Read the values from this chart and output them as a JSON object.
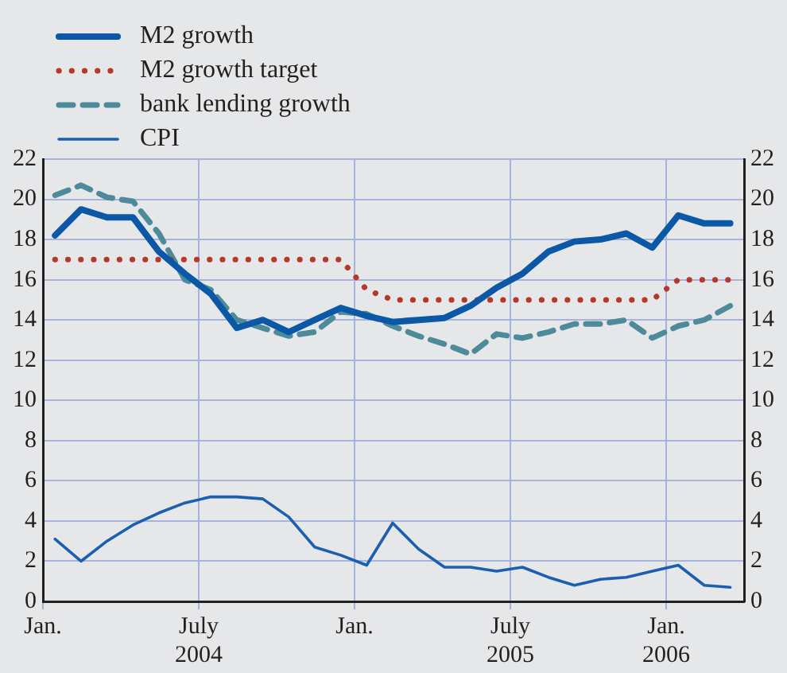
{
  "chart_data": {
    "type": "line",
    "x": [
      "2004-01-15",
      "2004-02-15",
      "2004-03-15",
      "2004-04-15",
      "2004-05-15",
      "2004-06-15",
      "2004-07-15",
      "2004-08-15",
      "2004-09-15",
      "2004-10-15",
      "2004-11-15",
      "2004-12-15",
      "2005-01-15",
      "2005-02-15",
      "2005-03-15",
      "2005-04-15",
      "2005-05-15",
      "2005-06-15",
      "2005-07-15",
      "2005-08-15",
      "2005-09-15",
      "2005-10-15",
      "2005-11-15",
      "2005-12-15",
      "2006-01-15",
      "2006-02-15",
      "2006-03-15"
    ],
    "series": [
      {
        "name": "M2 growth",
        "color": "#0a58a6",
        "line_style": "solid",
        "values": [
          18.2,
          19.5,
          19.1,
          19.1,
          17.4,
          16.3,
          15.3,
          13.6,
          14.0,
          13.4,
          14.0,
          14.6,
          14.2,
          13.9,
          14.0,
          14.1,
          14.7,
          15.6,
          16.3,
          17.4,
          17.9,
          18.0,
          18.3,
          17.6,
          19.2,
          18.8,
          18.8
        ]
      },
      {
        "name": "M2 growth target",
        "color": "#b5382c",
        "line_style": "dotted",
        "values": [
          17,
          17,
          17,
          17,
          17,
          17,
          17,
          17,
          17,
          17,
          17,
          17,
          15.5,
          15,
          15,
          15,
          15,
          15,
          15,
          15,
          15,
          15,
          15,
          15,
          16,
          16,
          16
        ]
      },
      {
        "name": "bank lending growth",
        "color": "#4d8b9b",
        "line_style": "dashed",
        "values": [
          20.2,
          20.7,
          20.1,
          19.9,
          18.3,
          16.0,
          15.5,
          14.0,
          13.6,
          13.2,
          13.4,
          14.4,
          14.3,
          13.7,
          13.2,
          12.8,
          12.3,
          13.3,
          13.1,
          13.4,
          13.8,
          13.8,
          14.0,
          13.1,
          13.7,
          14.0,
          14.7
        ]
      },
      {
        "name": "CPI",
        "color": "#1a5fb0",
        "line_style": "solid",
        "values": [
          3.1,
          2.0,
          3.0,
          3.8,
          4.4,
          4.9,
          5.2,
          5.2,
          5.1,
          4.2,
          2.7,
          2.3,
          1.8,
          3.9,
          2.6,
          1.7,
          1.7,
          1.5,
          1.7,
          1.2,
          0.8,
          1.1,
          1.2,
          1.5,
          1.8,
          0.8,
          0.7
        ]
      }
    ],
    "xlim": [
      "2004-01",
      "2006-04"
    ],
    "xticks": [
      {
        "value": "2004-01",
        "label": "Jan."
      },
      {
        "value": "2004-07",
        "label": "July\n2004"
      },
      {
        "value": "2005-01",
        "label": "Jan."
      },
      {
        "value": "2005-07",
        "label": "July\n2005"
      },
      {
        "value": "2006-01",
        "label": "Jan.\n2006"
      }
    ],
    "ylim": [
      0,
      22
    ],
    "yticks": [
      0,
      2,
      4,
      6,
      8,
      10,
      12,
      14,
      16,
      18,
      20,
      22
    ],
    "y2lim": [
      0,
      22
    ],
    "y2ticks": [
      0,
      2,
      4,
      6,
      8,
      10,
      12,
      14,
      16,
      18,
      20,
      22
    ],
    "grid": true,
    "legend": "top left",
    "marker": "none"
  }
}
